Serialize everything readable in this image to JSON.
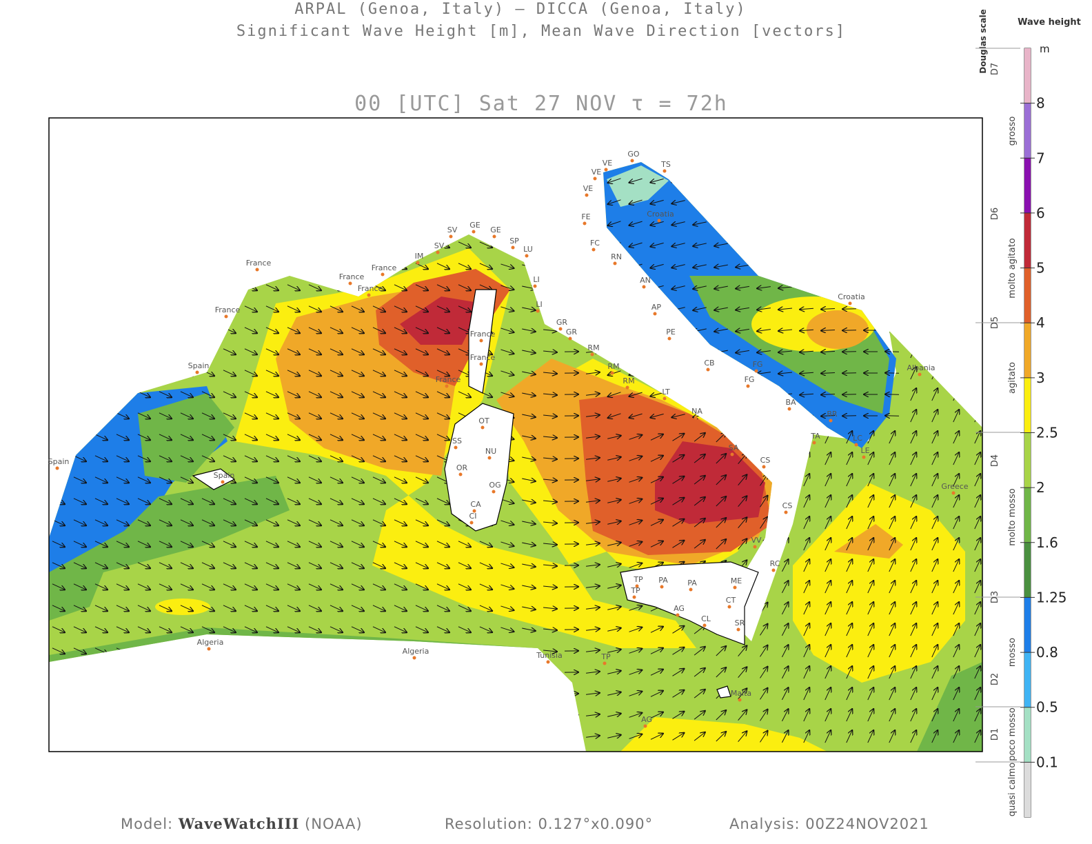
{
  "header": {
    "line1": "ARPAL (Genoa, Italy)  —  DICCA (Genoa, Italy)",
    "line2": "Significant Wave Height [m], Mean Wave Direction [vectors]",
    "time": "00 [UTC] Sat 27 NOV  τ = 72h"
  },
  "colorbar": {
    "title": "Wave height",
    "unit": "m",
    "ticks": [
      8,
      7,
      6,
      5,
      4,
      3,
      2.5,
      2,
      1.6,
      1.25,
      0.8,
      0.5,
      0.1
    ],
    "colors": [
      "#e8b4c8",
      "#9b6fd6",
      "#8a10b0",
      "#c02a38",
      "#e0602a",
      "#f0a828",
      "#fbee10",
      "#a8d448",
      "#70b648",
      "#4a9040",
      "#1e7ee8",
      "#40b4f4",
      "#a4e0c4",
      "#dcdcdc"
    ]
  },
  "douglas": {
    "title": "Douglas scale",
    "levels": [
      "D7",
      "D6",
      "D5",
      "D4",
      "D3",
      "D2",
      "D1"
    ],
    "descriptions": [
      "grosso",
      "molto agitato",
      "agitato",
      "molto mosso",
      "mosso",
      "poco mosso",
      "quasi calmo"
    ]
  },
  "places": [
    "France",
    "France",
    "France",
    "France",
    "France",
    "Spain",
    "Spain",
    "Spain",
    "Algeria",
    "Algeria",
    "Tunisia",
    "Malta",
    "Albania",
    "Croatia",
    "Greece",
    "SV",
    "GE",
    "GE",
    "SP",
    "LU",
    "IM",
    "SV",
    "LI",
    "LI",
    "GR",
    "GR",
    "RM",
    "RM",
    "RM",
    "LT",
    "NA",
    "SA",
    "CS",
    "CS",
    "VV",
    "RC",
    "ME",
    "CT",
    "SR",
    "PA",
    "PA",
    "TP",
    "TP",
    "AG",
    "CL",
    "TP",
    "AG",
    "OT",
    "SS",
    "NU",
    "OR",
    "OG",
    "CA",
    "CI",
    "VE",
    "VE",
    "VE",
    "GO",
    "TS",
    "FE",
    "FC",
    "RN",
    "AN",
    "AP",
    "PE",
    "CB",
    "FG",
    "FG",
    "BA",
    "BR",
    "TA",
    "LC",
    "LE",
    "France",
    "France",
    "France",
    "Croatia"
  ],
  "footer": {
    "model_label": "Model:",
    "model": "WaveWatchIII",
    "model_source": "(NOAA)",
    "resolution": "Resolution: 0.127°x0.090°",
    "analysis": "Analysis: 00Z24NOV2021"
  }
}
